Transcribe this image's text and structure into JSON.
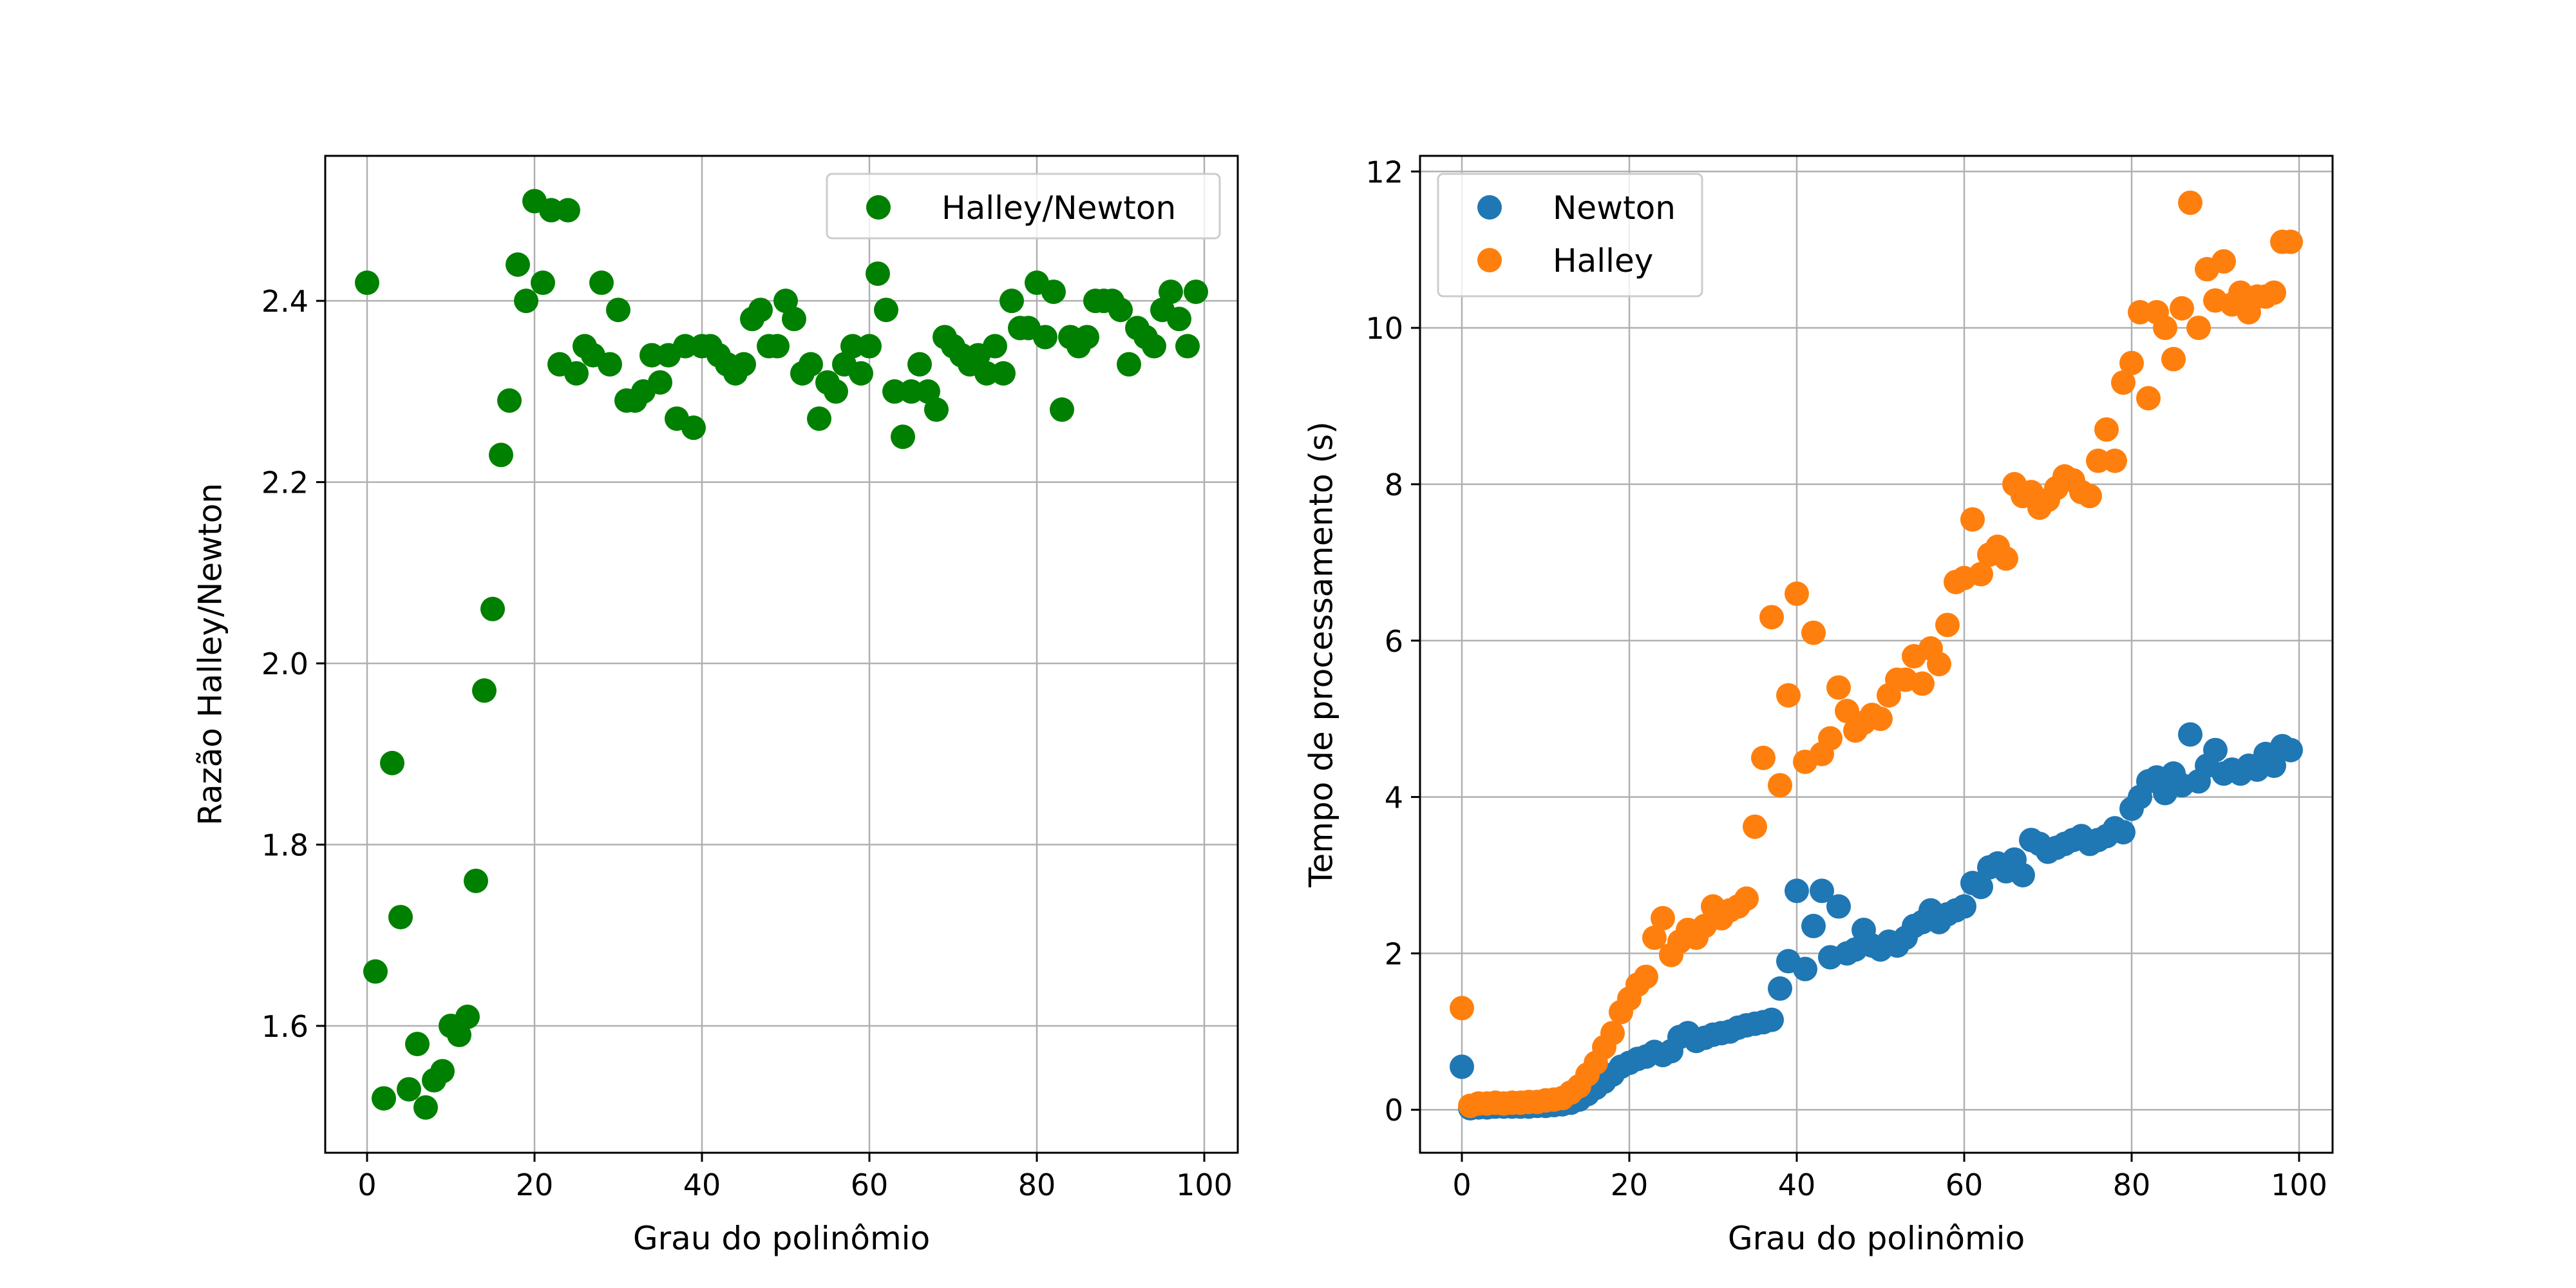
{
  "chart_data": [
    {
      "type": "scatter",
      "xlabel": "Grau do polinômio",
      "ylabel": "Razão Halley/Newton",
      "xlim": [
        -5,
        104
      ],
      "ylim": [
        1.46,
        2.56
      ],
      "xticks": [
        0,
        20,
        40,
        60,
        80,
        100
      ],
      "yticks": [
        1.6,
        1.8,
        2.0,
        2.2,
        2.4
      ],
      "xtick_labels": [
        "0",
        "20",
        "40",
        "60",
        "80",
        "100"
      ],
      "ytick_labels": [
        "1.6",
        "1.8",
        "2.0",
        "2.2",
        "2.4"
      ],
      "grid": true,
      "legend_position": "top-right",
      "series": [
        {
          "name": "Halley/Newton",
          "color": "#008000",
          "x": [
            0,
            1,
            2,
            3,
            4,
            5,
            6,
            7,
            8,
            9,
            10,
            11,
            12,
            13,
            14,
            15,
            16,
            17,
            18,
            19,
            20,
            21,
            22,
            23,
            24,
            25,
            26,
            27,
            28,
            29,
            30,
            31,
            32,
            33,
            34,
            35,
            36,
            37,
            38,
            39,
            40,
            41,
            42,
            43,
            44,
            45,
            46,
            47,
            48,
            49,
            50,
            51,
            52,
            53,
            54,
            55,
            56,
            57,
            58,
            59,
            60,
            61,
            62,
            63,
            64,
            65,
            66,
            67,
            68,
            69,
            70,
            71,
            72,
            73,
            74,
            75,
            76,
            77,
            78,
            79,
            80,
            81,
            82,
            83,
            84,
            85,
            86,
            87,
            88,
            89,
            90,
            91,
            92,
            93,
            94,
            95,
            96,
            97,
            98,
            99
          ],
          "values": [
            2.42,
            1.66,
            1.52,
            1.89,
            1.72,
            1.53,
            1.58,
            1.51,
            1.54,
            1.55,
            1.6,
            1.59,
            1.61,
            1.76,
            1.97,
            2.06,
            2.23,
            2.29,
            2.44,
            2.4,
            2.51,
            2.42,
            2.5,
            2.33,
            2.5,
            2.32,
            2.35,
            2.34,
            2.42,
            2.33,
            2.39,
            2.29,
            2.29,
            2.3,
            2.34,
            2.31,
            2.34,
            2.27,
            2.35,
            2.26,
            2.35,
            2.35,
            2.34,
            2.33,
            2.32,
            2.33,
            2.38,
            2.39,
            2.35,
            2.35,
            2.4,
            2.38,
            2.32,
            2.33,
            2.27,
            2.31,
            2.3,
            2.33,
            2.35,
            2.32,
            2.35,
            2.43,
            2.39,
            2.3,
            2.25,
            2.3,
            2.33,
            2.3,
            2.28,
            2.36,
            2.35,
            2.34,
            2.33,
            2.34,
            2.32,
            2.35,
            2.32,
            2.4,
            2.37,
            2.37,
            2.42,
            2.36,
            2.41,
            2.28,
            2.36,
            2.35,
            2.36,
            2.4,
            2.4,
            2.4,
            2.39,
            2.33,
            2.37,
            2.36,
            2.35,
            2.39,
            2.41,
            2.38,
            2.35,
            2.41
          ]
        }
      ]
    },
    {
      "type": "scatter",
      "xlabel": "Grau do polinômio",
      "ylabel": "Tempo de processamento (s)",
      "xlim": [
        -5,
        104
      ],
      "ylim": [
        -0.55,
        12.2
      ],
      "xticks": [
        0,
        20,
        40,
        60,
        80,
        100
      ],
      "yticks": [
        0,
        2,
        4,
        6,
        8,
        10,
        12
      ],
      "xtick_labels": [
        "0",
        "20",
        "40",
        "60",
        "80",
        "100"
      ],
      "ytick_labels": [
        "0",
        "2",
        "4",
        "6",
        "8",
        "10",
        "12"
      ],
      "grid": true,
      "legend_position": "top-left",
      "series": [
        {
          "name": "Newton",
          "color": "#1f77b4",
          "x": [
            0,
            1,
            2,
            3,
            4,
            5,
            6,
            7,
            8,
            9,
            10,
            11,
            12,
            13,
            14,
            15,
            16,
            17,
            18,
            19,
            20,
            21,
            22,
            23,
            24,
            25,
            26,
            27,
            28,
            29,
            30,
            31,
            32,
            33,
            34,
            35,
            36,
            37,
            38,
            39,
            40,
            41,
            42,
            43,
            44,
            45,
            46,
            47,
            48,
            49,
            50,
            51,
            52,
            53,
            54,
            55,
            56,
            57,
            58,
            59,
            60,
            61,
            62,
            63,
            64,
            65,
            66,
            67,
            68,
            69,
            70,
            71,
            72,
            73,
            74,
            75,
            76,
            77,
            78,
            79,
            80,
            81,
            82,
            83,
            84,
            85,
            86,
            87,
            88,
            89,
            90,
            91,
            92,
            93,
            94,
            95,
            96,
            97,
            98,
            99
          ],
          "values": [
            0.55,
            0.02,
            0.03,
            0.03,
            0.04,
            0.04,
            0.04,
            0.04,
            0.04,
            0.05,
            0.05,
            0.06,
            0.07,
            0.09,
            0.13,
            0.2,
            0.28,
            0.36,
            0.45,
            0.55,
            0.6,
            0.65,
            0.68,
            0.74,
            0.7,
            0.75,
            0.93,
            0.98,
            0.88,
            0.92,
            0.96,
            0.98,
            1.0,
            1.05,
            1.08,
            1.1,
            1.12,
            1.15,
            1.55,
            1.9,
            2.8,
            1.8,
            2.35,
            2.8,
            1.95,
            2.6,
            2.0,
            2.05,
            2.3,
            2.1,
            2.05,
            2.15,
            2.1,
            2.2,
            2.35,
            2.4,
            2.55,
            2.4,
            2.5,
            2.55,
            2.6,
            2.9,
            2.85,
            3.1,
            3.15,
            3.05,
            3.2,
            3.0,
            3.45,
            3.4,
            3.3,
            3.35,
            3.4,
            3.45,
            3.5,
            3.4,
            3.45,
            3.5,
            3.6,
            3.55,
            3.85,
            4.0,
            4.2,
            4.25,
            4.05,
            4.3,
            4.15,
            4.8,
            4.2,
            4.4,
            4.6,
            4.3,
            4.35,
            4.3,
            4.4,
            4.35,
            4.55,
            4.4,
            4.65,
            4.6
          ]
        },
        {
          "name": "Halley",
          "color": "#ff7f0e",
          "x": [
            0,
            1,
            2,
            3,
            4,
            5,
            6,
            7,
            8,
            9,
            10,
            11,
            12,
            13,
            14,
            15,
            16,
            17,
            18,
            19,
            20,
            21,
            22,
            23,
            24,
            25,
            26,
            27,
            28,
            29,
            30,
            31,
            32,
            33,
            34,
            35,
            36,
            37,
            38,
            39,
            40,
            41,
            42,
            43,
            44,
            45,
            46,
            47,
            48,
            49,
            50,
            51,
            52,
            53,
            54,
            55,
            56,
            57,
            58,
            59,
            60,
            61,
            62,
            63,
            64,
            65,
            66,
            67,
            68,
            69,
            70,
            71,
            72,
            73,
            74,
            75,
            76,
            77,
            78,
            79,
            80,
            81,
            82,
            83,
            84,
            85,
            86,
            87,
            88,
            89,
            90,
            91,
            92,
            93,
            94,
            95,
            96,
            97,
            98,
            99
          ],
          "values": [
            1.3,
            0.05,
            0.08,
            0.08,
            0.09,
            0.08,
            0.09,
            0.09,
            0.1,
            0.1,
            0.12,
            0.13,
            0.15,
            0.22,
            0.3,
            0.45,
            0.6,
            0.8,
            0.98,
            1.25,
            1.42,
            1.6,
            1.7,
            2.2,
            2.45,
            1.98,
            2.15,
            2.3,
            2.2,
            2.35,
            2.6,
            2.45,
            2.55,
            2.6,
            2.7,
            3.62,
            4.5,
            6.3,
            4.15,
            5.3,
            6.6,
            4.45,
            6.1,
            4.55,
            4.75,
            5.4,
            5.1,
            4.85,
            4.95,
            5.05,
            5.0,
            5.3,
            5.5,
            5.5,
            5.8,
            5.45,
            5.9,
            5.7,
            6.2,
            6.75,
            6.8,
            7.55,
            6.85,
            7.1,
            7.2,
            7.05,
            8.0,
            7.85,
            7.9,
            7.7,
            7.8,
            7.95,
            8.1,
            8.05,
            7.9,
            7.85,
            8.3,
            8.7,
            8.3,
            9.3,
            9.55,
            10.2,
            9.1,
            10.2,
            10.0,
            9.6,
            10.25,
            11.6,
            10.0,
            10.75,
            10.35,
            10.85,
            10.3,
            10.45,
            10.2,
            10.4,
            10.4,
            10.45,
            11.1,
            11.1
          ]
        }
      ]
    }
  ]
}
